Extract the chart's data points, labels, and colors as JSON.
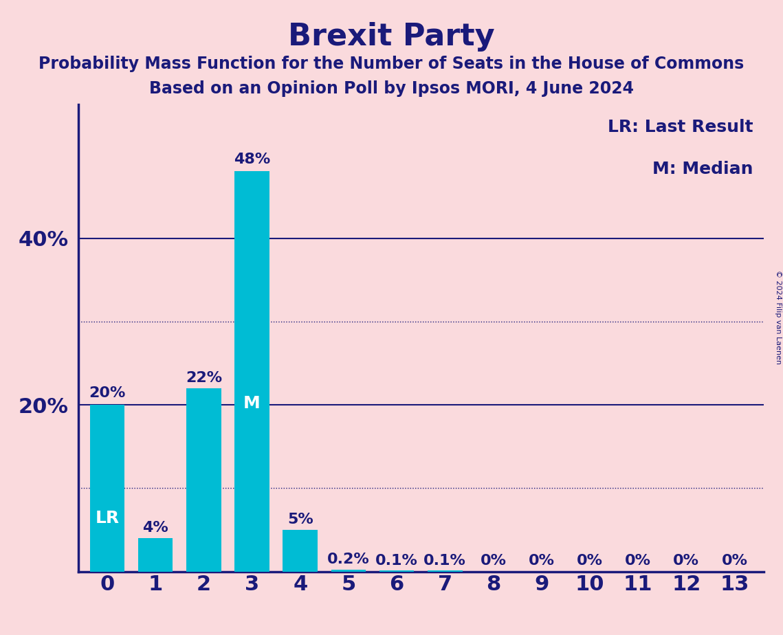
{
  "title": "Brexit Party",
  "subtitle1": "Probability Mass Function for the Number of Seats in the House of Commons",
  "subtitle2": "Based on an Opinion Poll by Ipsos MORI, 4 June 2024",
  "copyright": "© 2024 Filip van Laenen",
  "legend_line1": "LR: Last Result",
  "legend_line2": "M: Median",
  "categories": [
    0,
    1,
    2,
    3,
    4,
    5,
    6,
    7,
    8,
    9,
    10,
    11,
    12,
    13
  ],
  "values": [
    20.0,
    4.0,
    22.0,
    48.0,
    5.0,
    0.2,
    0.1,
    0.1,
    0.0,
    0.0,
    0.0,
    0.0,
    0.0,
    0.0
  ],
  "bar_labels": [
    "20%",
    "4%",
    "22%",
    "48%",
    "5%",
    "0.2%",
    "0.1%",
    "0.1%",
    "0%",
    "0%",
    "0%",
    "0%",
    "0%",
    "0%"
  ],
  "bar_color": "#00BCD4",
  "background_color": "#FADADD",
  "text_color": "#1a1a7a",
  "title_fontsize": 32,
  "subtitle_fontsize": 17,
  "axis_label_fontsize": 20,
  "bar_label_fontsize": 15,
  "yticks": [
    20,
    40
  ],
  "ytick_labels": [
    "20%",
    "40%"
  ],
  "ylim": [
    0,
    56
  ],
  "lr_bar": 0,
  "median_bar": 3,
  "dotted_lines": [
    10.0,
    30.0
  ],
  "solid_lines": [
    20.0,
    40.0
  ]
}
